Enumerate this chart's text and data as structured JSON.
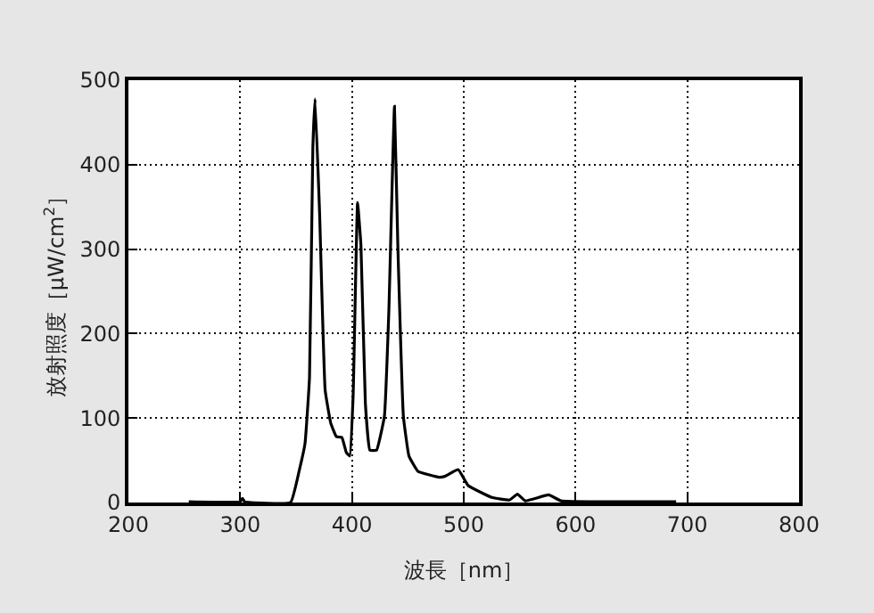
{
  "chart_data": {
    "type": "line",
    "xlabel": "波長［nm］",
    "ylabel": "放射照度［μW/cm$^{2}$］",
    "x": [
      254,
      300,
      302,
      304,
      345,
      353,
      358,
      362,
      365,
      367,
      371,
      376,
      381,
      386,
      391,
      395,
      398,
      401,
      405,
      408,
      412,
      416,
      422,
      429,
      433,
      438,
      441,
      446,
      451,
      459,
      478,
      483,
      495,
      504,
      525,
      541,
      548,
      555,
      576,
      587,
      690
    ],
    "series": [
      {
        "color": "#000000",
        "values": [
          1,
          1,
          5,
          1,
          0,
          39,
          70,
          148,
          420,
          478,
          344,
          133,
          94,
          78,
          77,
          59,
          55,
          125,
          355,
          305,
          117,
          62,
          62,
          102,
          227,
          469,
          305,
          102,
          55,
          37,
          30,
          31,
          39,
          20,
          6,
          3,
          10,
          2,
          9,
          2,
          1
        ]
      }
    ],
    "xlim": [
      200,
      800
    ],
    "xticks": [
      200,
      300,
      400,
      500,
      600,
      700,
      800
    ],
    "ylim": [
      0,
      500
    ],
    "yticks": [
      0,
      100,
      200,
      300,
      400,
      500
    ],
    "grid": true,
    "line_style": "solid",
    "marker": "none"
  }
}
